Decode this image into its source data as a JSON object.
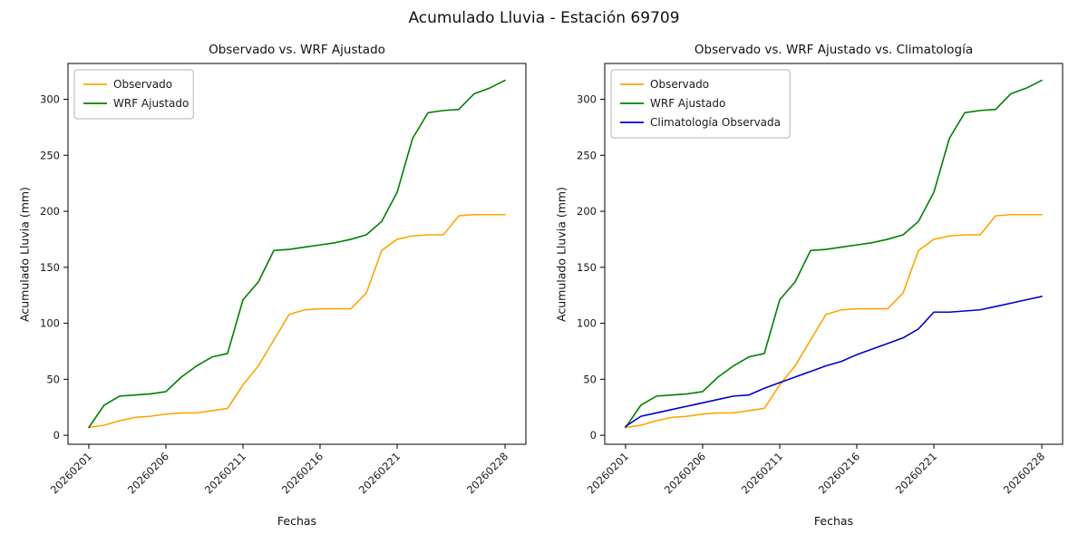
{
  "page": {
    "title": "Acumulado Lluvia - Estación 69709"
  },
  "chart_data": [
    {
      "type": "line",
      "title": "Observado vs. WRF Ajustado",
      "xlabel": "Fechas",
      "ylabel": "Acumulado Lluvia (mm)",
      "x": [
        "20260201",
        "20260202",
        "20260203",
        "20260204",
        "20260205",
        "20260206",
        "20260207",
        "20260208",
        "20260209",
        "20260210",
        "20260211",
        "20260212",
        "20260213",
        "20260214",
        "20260215",
        "20260216",
        "20260217",
        "20260218",
        "20260219",
        "20260220",
        "20260221",
        "20260222",
        "20260223",
        "20260224",
        "20260225",
        "20260226",
        "20260227",
        "20260228"
      ],
      "xtick_labels": [
        "20260201",
        "20260206",
        "20260211",
        "20260216",
        "20260221",
        "20260228"
      ],
      "xtick_indices": [
        0,
        5,
        10,
        15,
        20,
        27
      ],
      "yticks": [
        0,
        50,
        100,
        150,
        200,
        250,
        300
      ],
      "ylim": [
        -8,
        332
      ],
      "grid": false,
      "legend_position": "upper left",
      "series": [
        {
          "name": "Observado",
          "color": "#ffa500",
          "values": [
            7,
            9,
            13,
            16,
            17,
            19,
            20,
            20,
            22,
            24,
            45,
            62,
            85,
            108,
            112,
            113,
            113,
            113,
            127,
            165,
            175,
            178,
            179,
            179,
            196,
            197,
            197,
            197
          ]
        },
        {
          "name": "WRF Ajustado",
          "color": "#008000",
          "values": [
            7,
            27,
            35,
            36,
            37,
            39,
            52,
            62,
            70,
            73,
            121,
            137,
            165,
            166,
            168,
            170,
            172,
            175,
            179,
            191,
            217,
            265,
            288,
            290,
            291,
            305,
            310,
            317
          ]
        }
      ]
    },
    {
      "type": "line",
      "title": "Observado vs. WRF Ajustado vs. Climatología",
      "xlabel": "Fechas",
      "ylabel": "Acumulado Lluvia (mm)",
      "x": [
        "20260201",
        "20260202",
        "20260203",
        "20260204",
        "20260205",
        "20260206",
        "20260207",
        "20260208",
        "20260209",
        "20260210",
        "20260211",
        "20260212",
        "20260213",
        "20260214",
        "20260215",
        "20260216",
        "20260217",
        "20260218",
        "20260219",
        "20260220",
        "20260221",
        "20260222",
        "20260223",
        "20260224",
        "20260225",
        "20260226",
        "20260227",
        "20260228"
      ],
      "xtick_labels": [
        "20260201",
        "20260206",
        "20260211",
        "20260216",
        "20260221",
        "20260228"
      ],
      "xtick_indices": [
        0,
        5,
        10,
        15,
        20,
        27
      ],
      "yticks": [
        0,
        50,
        100,
        150,
        200,
        250,
        300
      ],
      "ylim": [
        -8,
        332
      ],
      "grid": false,
      "legend_position": "upper left",
      "series": [
        {
          "name": "Observado",
          "color": "#ffa500",
          "values": [
            7,
            9,
            13,
            16,
            17,
            19,
            20,
            20,
            22,
            24,
            45,
            62,
            85,
            108,
            112,
            113,
            113,
            113,
            127,
            165,
            175,
            178,
            179,
            179,
            196,
            197,
            197,
            197
          ]
        },
        {
          "name": "WRF Ajustado",
          "color": "#008000",
          "values": [
            7,
            27,
            35,
            36,
            37,
            39,
            52,
            62,
            70,
            73,
            121,
            137,
            165,
            166,
            168,
            170,
            172,
            175,
            179,
            191,
            217,
            265,
            288,
            290,
            291,
            305,
            310,
            317
          ]
        },
        {
          "name": "Climatología Observada",
          "color": "#0000cd",
          "values": [
            8,
            17,
            20,
            23,
            26,
            29,
            32,
            35,
            36,
            42,
            47,
            52,
            57,
            62,
            66,
            72,
            77,
            82,
            87,
            95,
            110,
            110,
            111,
            112,
            115,
            118,
            121,
            124
          ]
        }
      ]
    }
  ]
}
